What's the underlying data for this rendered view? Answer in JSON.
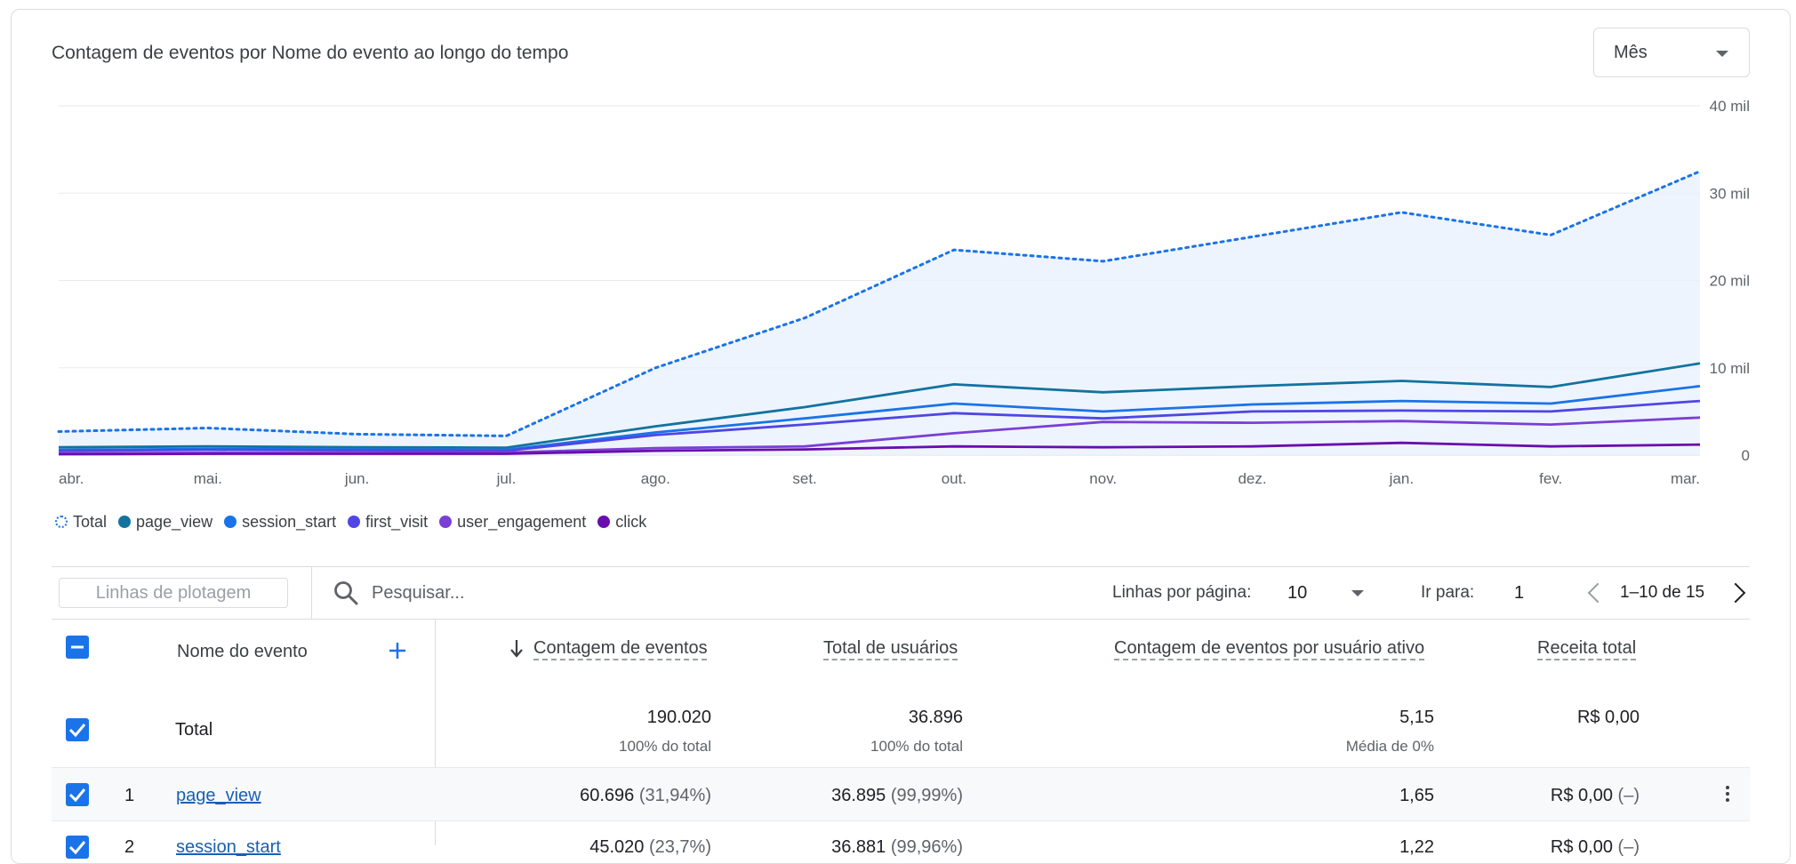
{
  "chart_title": "Contagem de eventos por Nome do evento ao longo do tempo",
  "period_select": {
    "value": "Mês"
  },
  "chart_data": {
    "type": "line",
    "title": "Contagem de eventos por Nome do evento ao longo do tempo",
    "categories": [
      "abr.",
      "mai.",
      "jun.",
      "jul.",
      "ago.",
      "set.",
      "out.",
      "nov.",
      "dez.",
      "jan.",
      "fev.",
      "mar."
    ],
    "y_ticks": [
      "0",
      "10 mil",
      "20 mil",
      "30 mil",
      "40 mil"
    ],
    "ylim": [
      0,
      40000
    ],
    "y_axis_side": "right",
    "grid": true,
    "legend_position": "bottom-left",
    "series": [
      {
        "name": "Total",
        "color": "#1a73e8",
        "style": "dotted-area",
        "values": [
          2700,
          3100,
          2400,
          2200,
          10000,
          15700,
          23500,
          22200,
          25000,
          27800,
          25200,
          32500
        ]
      },
      {
        "name": "page_view",
        "color": "#12739f",
        "values": [
          900,
          1000,
          900,
          850,
          3300,
          5500,
          8100,
          7200,
          7900,
          8500,
          7800,
          10500
        ]
      },
      {
        "name": "session_start",
        "color": "#1a73e8",
        "values": [
          600,
          700,
          650,
          600,
          2600,
          4200,
          5900,
          5000,
          5800,
          6200,
          5900,
          7900
        ]
      },
      {
        "name": "first_visit",
        "color": "#4f46e5",
        "values": [
          500,
          600,
          550,
          500,
          2300,
          3500,
          4800,
          4200,
          5000,
          5100,
          5000,
          6200
        ]
      },
      {
        "name": "user_engagement",
        "color": "#7b3fd6",
        "values": [
          200,
          250,
          250,
          300,
          800,
          1000,
          2500,
          3800,
          3700,
          3900,
          3500,
          4300
        ]
      },
      {
        "name": "click",
        "color": "#6a0dad",
        "values": [
          100,
          150,
          150,
          150,
          500,
          650,
          1000,
          900,
          1000,
          1400,
          1000,
          1200
        ]
      }
    ]
  },
  "toolbar": {
    "plot_rows_label": "Linhas de plotagem",
    "search_placeholder": "Pesquisar...",
    "rows_per_page_label": "Linhas por página:",
    "rows_per_page_value": "10",
    "goto_label": "Ir para:",
    "goto_value": "1",
    "range_text": "1–10 de 15"
  },
  "table": {
    "headers": {
      "event_name": "Nome do evento",
      "event_count": "Contagem de eventos",
      "total_users": "Total de usuários",
      "events_per_user": "Contagem de eventos por usuário ativo",
      "total_revenue": "Receita total"
    },
    "total_row": {
      "label": "Total",
      "event_count": "190.020",
      "event_count_sub": "100% do total",
      "total_users": "36.896",
      "total_users_sub": "100% do total",
      "events_per_user": "5,15",
      "events_per_user_sub": "Média de 0%",
      "total_revenue": "R$ 0,00"
    },
    "rows": [
      {
        "index": "1",
        "name": "page_view",
        "event_count": "60.696",
        "event_count_pct": "(31,94%)",
        "total_users": "36.895",
        "total_users_pct": "(99,99%)",
        "events_per_user": "1,65",
        "total_revenue": "R$ 0,00",
        "total_revenue_pct": "(–)"
      },
      {
        "index": "2",
        "name": "session_start",
        "event_count": "45.020",
        "event_count_pct": "(23,7%)",
        "total_users": "36.881",
        "total_users_pct": "(99,96%)",
        "events_per_user": "1,22",
        "total_revenue": "R$ 0,00",
        "total_revenue_pct": "(–)"
      }
    ]
  }
}
